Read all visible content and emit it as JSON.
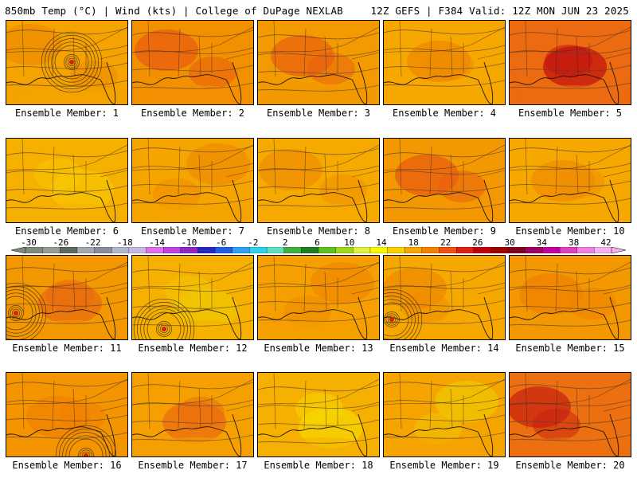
{
  "header": {
    "left": "850mb Temp (°C) | Wind (kts) | College of DuPage NEXLAB",
    "right": "12Z GEFS | F384 Valid: 12Z MON JUN 23 2025"
  },
  "colorbar": {
    "ticks": [
      "-30",
      "-26",
      "-22",
      "-18",
      "-14",
      "-10",
      "-6",
      "-2",
      "2",
      "6",
      "10",
      "14",
      "18",
      "22",
      "26",
      "30",
      "34",
      "38",
      "42"
    ],
    "colors": [
      "#7d8a7c",
      "#949e94",
      "#5e6a60",
      "#a4a8b0",
      "#8c8ca0",
      "#b0b8cc",
      "#c8b8e0",
      "#e070e8",
      "#c040e0",
      "#9028c8",
      "#2828c0",
      "#2060e0",
      "#30a0f0",
      "#30d0f0",
      "#60e0c0",
      "#40b040",
      "#208020",
      "#60c020",
      "#a0d820",
      "#e0f040",
      "#f8f800",
      "#f8d000",
      "#f8a800",
      "#f88000",
      "#f05010",
      "#e02010",
      "#c00010",
      "#a00000",
      "#800020",
      "#a00060",
      "#c000a0",
      "#e040c0",
      "#f080e0",
      "#f8b0f0"
    ]
  },
  "panels": [
    {
      "label": "Ensemble Member: 1",
      "tone": "#f5a300",
      "accent": "#f08a00",
      "cyclone": true,
      "cx": 82,
      "cy": 52
    },
    {
      "label": "Ensemble Member: 2",
      "tone": "#f39000",
      "accent": "#e85a10",
      "cyclone": false
    },
    {
      "label": "Ensemble Member: 3",
      "tone": "#f39a00",
      "accent": "#e86010",
      "cyclone": false
    },
    {
      "label": "Ensemble Member: 4",
      "tone": "#f6a800",
      "accent": "#f08800",
      "cyclone": false
    },
    {
      "label": "Ensemble Member: 5",
      "tone": "#ec6a10",
      "accent": "#c01010",
      "cyclone": false
    },
    {
      "label": "Ensemble Member: 6",
      "tone": "#f6b000",
      "accent": "#f6c800",
      "cyclone": false
    },
    {
      "label": "Ensemble Member: 7",
      "tone": "#f5a400",
      "accent": "#f08a00",
      "cyclone": false
    },
    {
      "label": "Ensemble Member: 8",
      "tone": "#f6aa00",
      "accent": "#f08c00",
      "cyclone": false
    },
    {
      "label": "Ensemble Member: 9",
      "tone": "#f39800",
      "accent": "#e85a10",
      "cyclone": false
    },
    {
      "label": "Ensemble Member: 10",
      "tone": "#f6a800",
      "accent": "#f08c00",
      "cyclone": false
    },
    {
      "label": "Ensemble Member: 11",
      "tone": "#f39800",
      "accent": "#e86a10",
      "cyclone": true,
      "cx": 12,
      "cy": 72
    },
    {
      "label": "Ensemble Member: 12",
      "tone": "#f6b000",
      "accent": "#f0c800",
      "cyclone": true,
      "cx": 40,
      "cy": 92
    },
    {
      "label": "Ensemble Member: 13",
      "tone": "#f5a000",
      "accent": "#f08800",
      "cyclone": false
    },
    {
      "label": "Ensemble Member: 14",
      "tone": "#f6a800",
      "accent": "#f08a00",
      "cyclone": true,
      "cx": 10,
      "cy": 80
    },
    {
      "label": "Ensemble Member: 15",
      "tone": "#f39800",
      "accent": "#f08000",
      "cyclone": false
    },
    {
      "label": "Ensemble Member: 16",
      "tone": "#f39400",
      "accent": "#f08000",
      "cyclone": true,
      "cx": 100,
      "cy": 104
    },
    {
      "label": "Ensemble Member: 17",
      "tone": "#f5a000",
      "accent": "#ea6a10",
      "cyclone": false
    },
    {
      "label": "Ensemble Member: 18",
      "tone": "#f6b000",
      "accent": "#f6d800",
      "cyclone": false
    },
    {
      "label": "Ensemble Member: 19",
      "tone": "#f5a400",
      "accent": "#f0c800",
      "cyclone": false
    },
    {
      "label": "Ensemble Member: 20",
      "tone": "#ec7010",
      "accent": "#c82010",
      "cyclone": false
    }
  ]
}
